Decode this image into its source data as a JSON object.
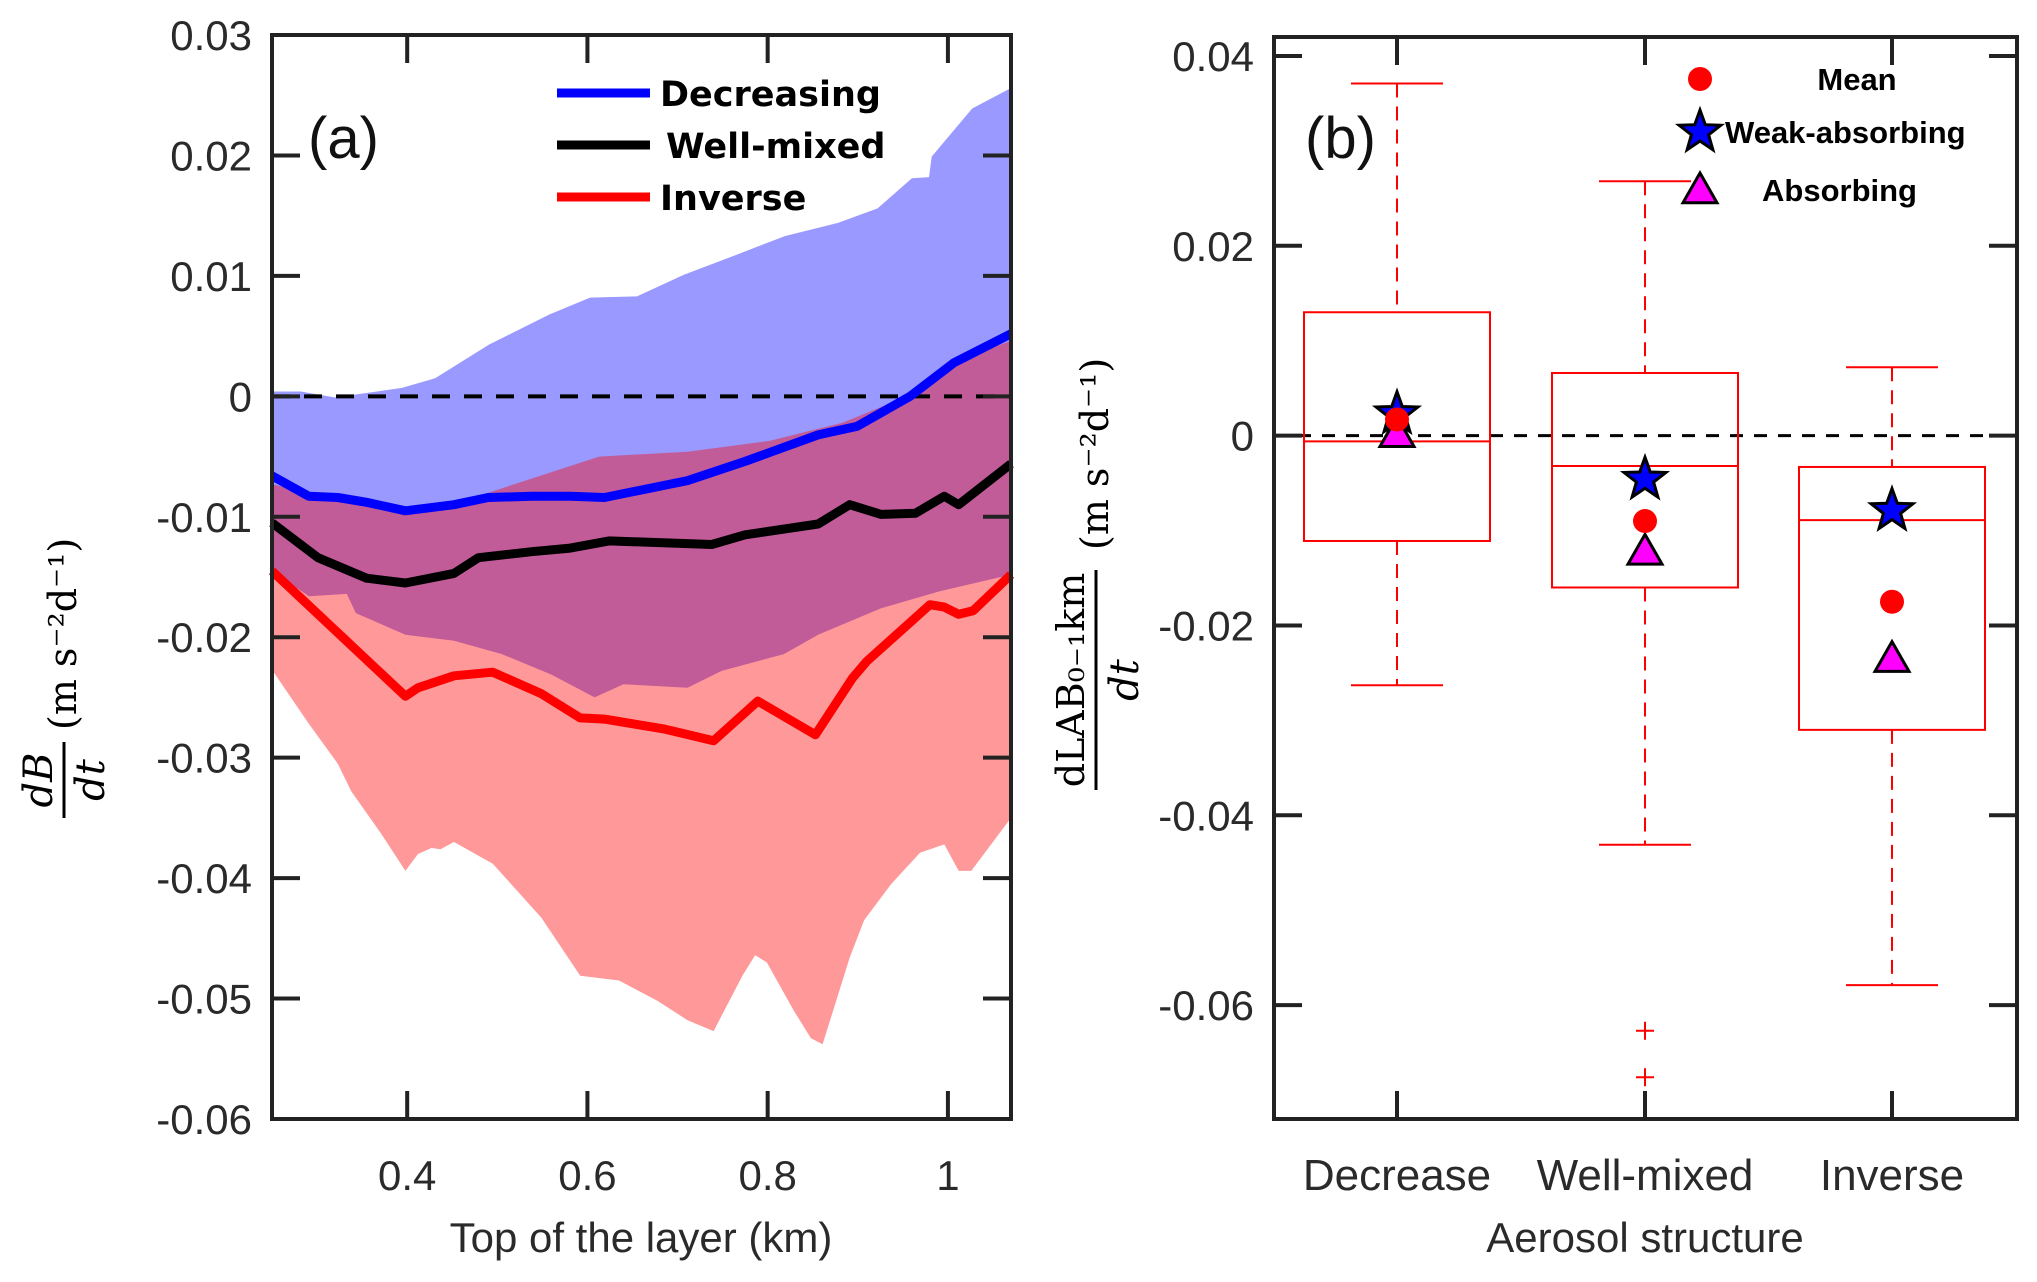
{
  "chart_data": [
    {
      "panel": "a",
      "panel_label": "(a)",
      "type": "area",
      "xlabel": "Top of the layer (km)",
      "ylabel": {
        "numerator": "dB",
        "denominator": "dt",
        "units": "(m s⁻²d⁻¹)"
      },
      "xlim": [
        0.25,
        1.07
      ],
      "ylim": [
        -0.06,
        0.03
      ],
      "xticks": [
        0.4,
        0.6,
        0.8,
        1.0
      ],
      "xtick_labels": [
        "0.4",
        "0.6",
        "0.8",
        "1"
      ],
      "yticks": [
        0.03,
        0.02,
        0.01,
        0,
        -0.01,
        -0.02,
        -0.03,
        -0.04,
        -0.05,
        -0.06
      ],
      "ytick_labels": [
        "0.03",
        "0.02",
        "0.01",
        "0",
        "-0.01",
        "-0.02",
        "-0.03",
        "-0.04",
        "-0.05",
        "-0.06"
      ],
      "reference_line": {
        "y": 0,
        "style": "dashed",
        "color": "#000000"
      },
      "legend": {
        "placement": "top-right",
        "entries": [
          {
            "label": "Decreasing",
            "color": "#0000ff"
          },
          {
            "label": "Well-mixed",
            "color": "#000000"
          },
          {
            "label": "Inverse",
            "color": "#ff0000"
          }
        ]
      },
      "bands": [
        {
          "name": "Decreasing range",
          "color": "#0000ff",
          "opacity": 0.4,
          "upper": {
            "x": [
              0.25,
              0.282,
              0.32,
              0.394,
              0.431,
              0.491,
              0.558,
              0.603,
              0.655,
              0.707,
              0.767,
              0.819,
              0.878,
              0.922,
              0.96,
              0.979,
              0.982,
              1.027,
              1.07
            ],
            "y": [
              0.0004,
              0.0004,
              -0.0001,
              0.0007,
              0.0015,
              0.0043,
              0.0068,
              0.0082,
              0.0083,
              0.0101,
              0.0118,
              0.0133,
              0.0144,
              0.0156,
              0.0181,
              0.0182,
              0.0199,
              0.0239,
              0.0256
            ]
          },
          "lower": {
            "x": [
              0.25,
              0.291,
              0.333,
              0.343,
              0.398,
              0.452,
              0.505,
              0.56,
              0.608,
              0.64,
              0.711,
              0.749,
              0.818,
              0.856,
              0.926,
              0.99,
              1.07
            ],
            "y": [
              -0.0145,
              -0.0166,
              -0.0164,
              -0.018,
              -0.0198,
              -0.0203,
              -0.0214,
              -0.0231,
              -0.025,
              -0.0239,
              -0.0242,
              -0.0228,
              -0.0214,
              -0.0198,
              -0.0176,
              -0.0162,
              -0.0148
            ]
          }
        },
        {
          "name": "Inverse range",
          "color": "#ff0000",
          "opacity": 0.4,
          "upper": {
            "x": [
              0.25,
              0.398,
              0.49,
              0.613,
              0.711,
              0.802,
              0.883,
              0.958,
              1.018,
              1.07
            ],
            "y": [
              -0.0073,
              -0.0098,
              -0.008,
              -0.005,
              -0.0046,
              -0.0037,
              -0.0022,
              0.0001,
              0.0032,
              0.0046
            ]
          },
          "lower": {
            "x": [
              0.25,
              0.291,
              0.323,
              0.338,
              0.371,
              0.398,
              0.412,
              0.427,
              0.437,
              0.452,
              0.495,
              0.549,
              0.592,
              0.635,
              0.678,
              0.711,
              0.74,
              0.772,
              0.786,
              0.799,
              0.829,
              0.848,
              0.861,
              0.891,
              0.907,
              0.937,
              0.969,
              0.996,
              1.012,
              1.026,
              1.07
            ],
            "y": [
              -0.0227,
              -0.0272,
              -0.0305,
              -0.0328,
              -0.0363,
              -0.0394,
              -0.038,
              -0.0375,
              -0.0376,
              -0.037,
              -0.0388,
              -0.0433,
              -0.0481,
              -0.0485,
              -0.0502,
              -0.0518,
              -0.0527,
              -0.0481,
              -0.0464,
              -0.047,
              -0.051,
              -0.0533,
              -0.0538,
              -0.0466,
              -0.0435,
              -0.0405,
              -0.0379,
              -0.0372,
              -0.0394,
              -0.0394,
              -0.035
            ]
          }
        }
      ],
      "series": [
        {
          "name": "Decreasing",
          "color": "#0000ff",
          "x": [
            0.25,
            0.291,
            0.323,
            0.355,
            0.398,
            0.452,
            0.49,
            0.538,
            0.581,
            0.619,
            0.711,
            0.775,
            0.856,
            0.899,
            0.958,
            1.007,
            1.07
          ],
          "y": [
            -0.0066,
            -0.0083,
            -0.0084,
            -0.0088,
            -0.0095,
            -0.009,
            -0.0084,
            -0.0083,
            -0.0083,
            -0.0084,
            -0.007,
            -0.0054,
            -0.0032,
            -0.0025,
            0.0,
            0.0028,
            0.0052
          ]
        },
        {
          "name": "Well-mixed",
          "color": "#000000",
          "x": [
            0.25,
            0.301,
            0.355,
            0.398,
            0.452,
            0.479,
            0.538,
            0.581,
            0.624,
            0.738,
            0.775,
            0.856,
            0.891,
            0.926,
            0.964,
            0.996,
            1.012,
            1.07
          ],
          "y": [
            -0.0105,
            -0.0134,
            -0.0151,
            -0.0155,
            -0.0147,
            -0.0134,
            -0.0129,
            -0.0126,
            -0.012,
            -0.0123,
            -0.0115,
            -0.0106,
            -0.009,
            -0.0098,
            -0.0097,
            -0.0083,
            -0.009,
            -0.0056
          ]
        },
        {
          "name": "Inverse",
          "color": "#ff0000",
          "x": [
            0.25,
            0.398,
            0.412,
            0.452,
            0.495,
            0.549,
            0.592,
            0.619,
            0.684,
            0.74,
            0.789,
            0.853,
            0.894,
            0.91,
            0.98,
            0.996,
            1.012,
            1.028,
            1.07
          ],
          "y": [
            -0.0145,
            -0.0249,
            -0.0242,
            -0.0232,
            -0.0229,
            -0.0247,
            -0.0267,
            -0.0268,
            -0.0276,
            -0.0286,
            -0.0253,
            -0.0281,
            -0.0234,
            -0.022,
            -0.0173,
            -0.0175,
            -0.0181,
            -0.0178,
            -0.0148
          ]
        }
      ]
    },
    {
      "panel": "b",
      "panel_label": "(b)",
      "type": "box",
      "xlabel": "Aerosol structure",
      "ylabel": {
        "numerator": "dLAB₀₋₁km",
        "denominator": "dt",
        "units": "(m s⁻²d⁻¹)"
      },
      "ylim": [
        -0.072,
        0.042
      ],
      "yticks": [
        0.04,
        0.02,
        0,
        -0.02,
        -0.04,
        -0.06
      ],
      "ytick_labels": [
        "0.04",
        "0.02",
        "0",
        "-0.02",
        "-0.04",
        "-0.06"
      ],
      "categories": [
        "Decrease",
        "Well-mixed",
        "Inverse"
      ],
      "reference_line": {
        "y": 0,
        "style": "dashed",
        "color": "#000000"
      },
      "box_color": "#ff0000",
      "boxes": [
        {
          "category": "Decrease",
          "whisker_high": 0.0371,
          "q3": 0.013,
          "median": -0.0006,
          "q1": -0.0111,
          "whisker_low": -0.0263,
          "outliers": []
        },
        {
          "category": "Well-mixed",
          "whisker_high": 0.0268,
          "q3": 0.0066,
          "median": -0.0032,
          "q1": -0.016,
          "whisker_low": -0.0431,
          "outliers": [
            -0.0627,
            -0.0676
          ]
        },
        {
          "category": "Inverse",
          "whisker_high": 0.0072,
          "q3": -0.0033,
          "median": -0.0089,
          "q1": -0.031,
          "whisker_low": -0.0579,
          "outliers": []
        }
      ],
      "markers": [
        {
          "name": "Mean",
          "shape": "circle",
          "color": "#ff0000",
          "values": [
            0.0017,
            -0.009,
            -0.0175
          ]
        },
        {
          "name": "Weak-absorbing",
          "shape": "star",
          "color": "#0000ff",
          "values": [
            0.0023,
            -0.0046,
            -0.0079
          ]
        },
        {
          "name": "Absorbing",
          "shape": "triangle",
          "color": "#ff00ff",
          "values": [
            0.0002,
            -0.0122,
            -0.0235
          ]
        }
      ],
      "legend": {
        "placement": "top-right",
        "entries": [
          "Mean",
          "Weak-absorbing",
          "Absorbing"
        ]
      }
    }
  ]
}
